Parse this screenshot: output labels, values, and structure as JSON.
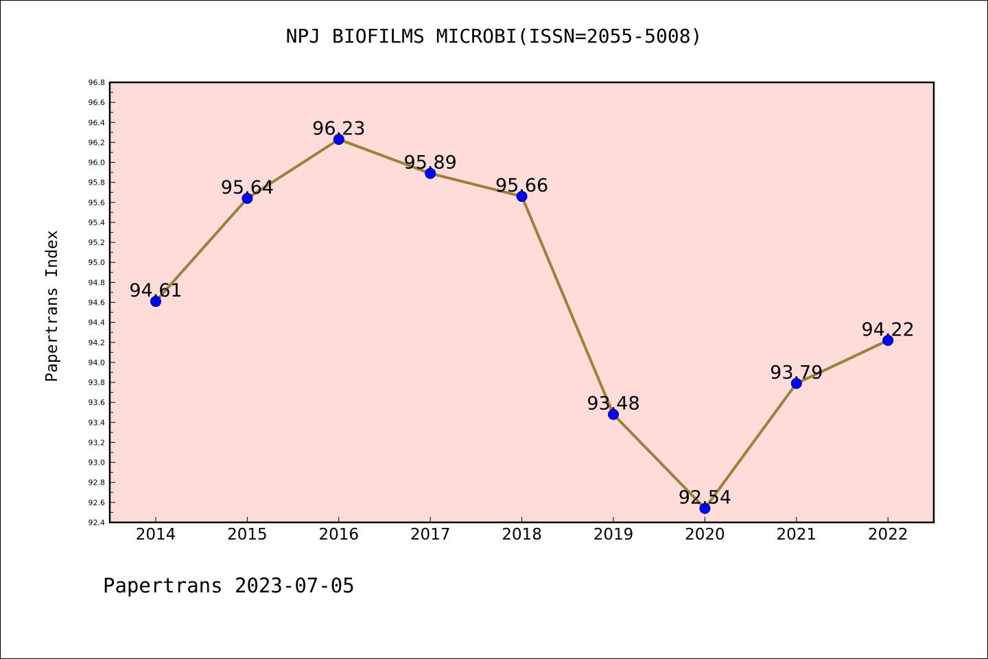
{
  "title": "NPJ BIOFILMS MICROBI(ISSN=2055-5008)",
  "footer": "Papertrans 2023-07-05",
  "colors": {
    "plot_background": "#fddcda",
    "line": "#9b8238",
    "marker": "#0000ff",
    "axis": "#000000"
  },
  "chart_data": {
    "type": "line",
    "title": "NPJ BIOFILMS MICROBI(ISSN=2055-5008)",
    "xlabel": "",
    "ylabel": "Papertrans Index",
    "categories": [
      "2014",
      "2015",
      "2016",
      "2017",
      "2018",
      "2019",
      "2020",
      "2021",
      "2022"
    ],
    "series": [
      {
        "values": [
          94.61,
          95.64,
          96.23,
          95.89,
          95.66,
          93.48,
          92.54,
          93.79,
          94.22
        ],
        "labels": [
          "94.61",
          "95.64",
          "96.23",
          "95.89",
          "95.66",
          "93.48",
          "92.54",
          "93.79",
          "94.22"
        ]
      }
    ],
    "ylim": [
      92.4,
      96.8
    ],
    "yticks": [
      "92.4",
      "92.6",
      "92.8",
      "93.0",
      "93.2",
      "93.4",
      "93.6",
      "93.8",
      "94.0",
      "94.2",
      "94.4",
      "94.6",
      "94.8",
      "95.0",
      "95.2",
      "95.4",
      "95.6",
      "95.8",
      "96.0",
      "96.2",
      "96.4",
      "96.6",
      "96.8"
    ],
    "grid": false,
    "legend": "none"
  }
}
